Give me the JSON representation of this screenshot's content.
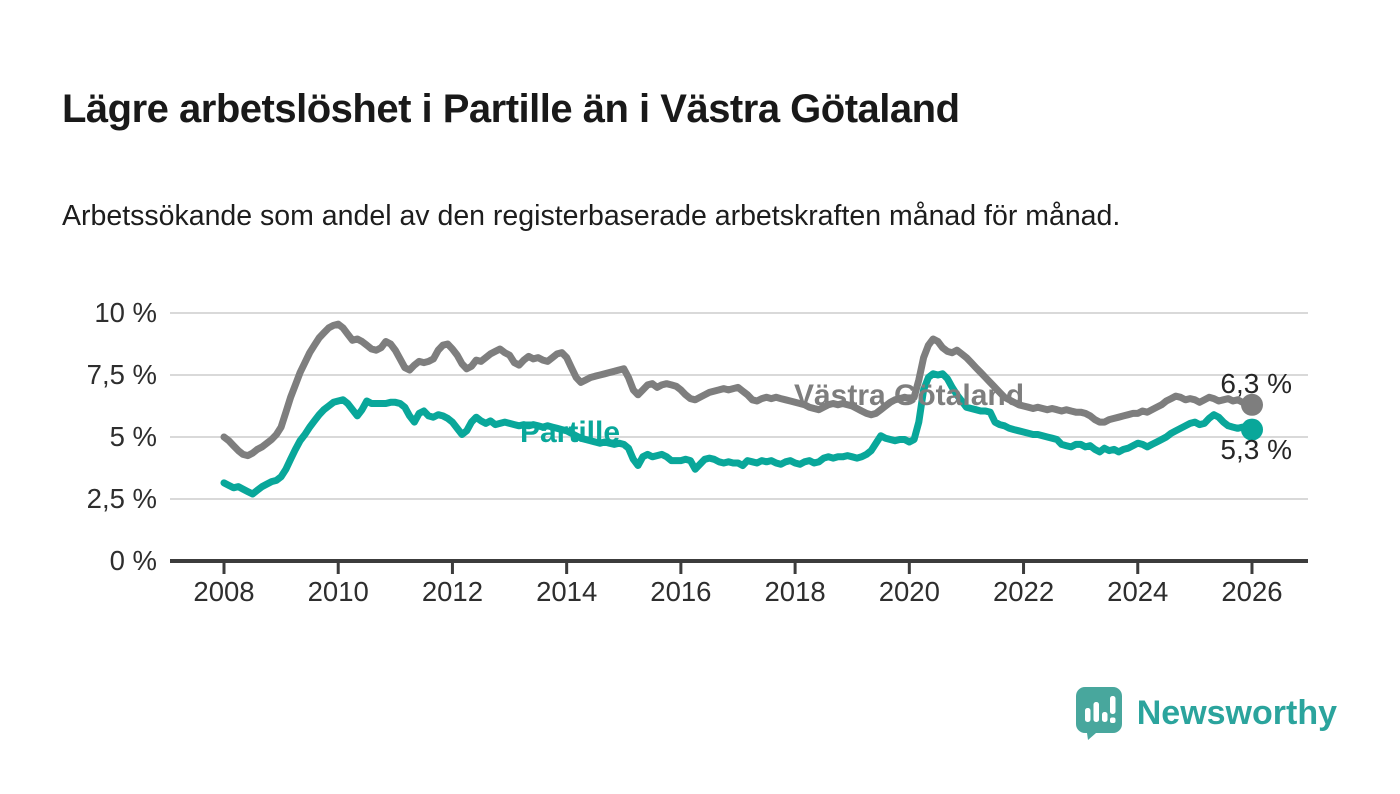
{
  "header": {
    "title": "Lägre arbetslöshet i Partille än i Västra Götaland",
    "subtitle": "Arbetssökande som andel av den registerbaserade arbetskraften månad för månad."
  },
  "footer": {
    "brand": "Newsworthy",
    "brand_color": "#2ba49d",
    "logo_icon": "bar-chart-speech-bubble"
  },
  "chart_data": {
    "type": "line",
    "title": "Lägre arbetslöshet i Partille än i Västra Götaland",
    "subtitle": "Arbetssökande som andel av den registerbaserade arbetskraften månad för månad.",
    "xlabel": "",
    "ylabel": "",
    "x_unit": "year-month",
    "x_start": 2008.0,
    "x_step_years": 0.0833,
    "xlim": [
      2007.05,
      2026.98
    ],
    "ylim": [
      0,
      10.5
    ],
    "grid": true,
    "grid_color": "#d9d9d9",
    "axis_color": "#3c3c3c",
    "x_ticks": [
      2008,
      2010,
      2012,
      2014,
      2016,
      2018,
      2020,
      2022,
      2024,
      2026
    ],
    "y_ticks": [
      {
        "value": 10,
        "label": "10 %"
      },
      {
        "value": 7.5,
        "label": "7,5 %"
      },
      {
        "value": 5,
        "label": "5 %"
      },
      {
        "value": 2.5,
        "label": "2,5 %"
      },
      {
        "value": 0,
        "label": "0 %"
      }
    ],
    "legend_position": "inline-labels",
    "series": [
      {
        "name": "Västra Götaland",
        "color": "#7e7e7e",
        "end_label": "6,3 %",
        "end_value": 6.3,
        "label_anchor": {
          "x": 909,
          "y": 396
        },
        "values": [
          5.0,
          4.85,
          4.65,
          4.45,
          4.3,
          4.25,
          4.35,
          4.5,
          4.6,
          4.75,
          4.9,
          5.1,
          5.4,
          6.0,
          6.6,
          7.1,
          7.6,
          8.0,
          8.4,
          8.7,
          9.0,
          9.2,
          9.4,
          9.5,
          9.55,
          9.4,
          9.15,
          8.9,
          8.95,
          8.85,
          8.7,
          8.55,
          8.5,
          8.6,
          8.85,
          8.75,
          8.5,
          8.15,
          7.8,
          7.7,
          7.9,
          8.05,
          8.0,
          8.05,
          8.15,
          8.5,
          8.7,
          8.75,
          8.55,
          8.3,
          7.95,
          7.75,
          7.85,
          8.1,
          8.05,
          8.2,
          8.35,
          8.45,
          8.55,
          8.4,
          8.3,
          8.0,
          7.9,
          8.1,
          8.25,
          8.15,
          8.2,
          8.1,
          8.05,
          8.2,
          8.35,
          8.4,
          8.2,
          7.8,
          7.4,
          7.2,
          7.3,
          7.4,
          7.45,
          7.5,
          7.55,
          7.6,
          7.65,
          7.7,
          7.75,
          7.4,
          6.9,
          6.7,
          6.9,
          7.1,
          7.15,
          7.0,
          7.1,
          7.15,
          7.1,
          7.05,
          6.9,
          6.7,
          6.55,
          6.5,
          6.6,
          6.7,
          6.8,
          6.85,
          6.9,
          6.95,
          6.9,
          6.95,
          7.0,
          6.85,
          6.7,
          6.5,
          6.45,
          6.55,
          6.6,
          6.55,
          6.6,
          6.55,
          6.5,
          6.45,
          6.4,
          6.35,
          6.3,
          6.2,
          6.15,
          6.1,
          6.2,
          6.3,
          6.35,
          6.3,
          6.35,
          6.3,
          6.25,
          6.15,
          6.05,
          5.95,
          5.9,
          5.95,
          6.1,
          6.25,
          6.4,
          6.5,
          6.55,
          6.6,
          6.55,
          6.6,
          7.3,
          8.2,
          8.7,
          8.95,
          8.85,
          8.6,
          8.45,
          8.4,
          8.5,
          8.35,
          8.2,
          8.0,
          7.8,
          7.6,
          7.4,
          7.2,
          7.0,
          6.8,
          6.6,
          6.5,
          6.4,
          6.3,
          6.25,
          6.2,
          6.15,
          6.2,
          6.15,
          6.1,
          6.15,
          6.1,
          6.05,
          6.1,
          6.05,
          6.0,
          6.0,
          5.95,
          5.85,
          5.7,
          5.6,
          5.6,
          5.7,
          5.75,
          5.8,
          5.85,
          5.9,
          5.95,
          5.95,
          6.05,
          6.0,
          6.1,
          6.2,
          6.3,
          6.45,
          6.55,
          6.65,
          6.6,
          6.5,
          6.55,
          6.5,
          6.4,
          6.5,
          6.6,
          6.55,
          6.45,
          6.5,
          6.55,
          6.45,
          6.5,
          6.4,
          6.35,
          6.3
        ]
      },
      {
        "name": "Partille",
        "color": "#09a79a",
        "end_label": "5,3 %",
        "end_value": 5.3,
        "label_anchor": {
          "x": 570,
          "y": 433
        },
        "values": [
          3.15,
          3.05,
          2.95,
          3.0,
          2.9,
          2.8,
          2.7,
          2.85,
          3.0,
          3.1,
          3.2,
          3.25,
          3.4,
          3.7,
          4.1,
          4.5,
          4.85,
          5.1,
          5.4,
          5.65,
          5.9,
          6.1,
          6.25,
          6.4,
          6.45,
          6.5,
          6.35,
          6.1,
          5.85,
          6.1,
          6.45,
          6.35,
          6.35,
          6.35,
          6.35,
          6.4,
          6.4,
          6.35,
          6.2,
          5.85,
          5.6,
          5.95,
          6.05,
          5.85,
          5.8,
          5.9,
          5.85,
          5.75,
          5.6,
          5.35,
          5.1,
          5.25,
          5.6,
          5.8,
          5.65,
          5.55,
          5.65,
          5.5,
          5.55,
          5.6,
          5.55,
          5.5,
          5.45,
          5.5,
          5.45,
          5.5,
          5.45,
          5.4,
          5.45,
          5.4,
          5.35,
          5.3,
          5.25,
          5.15,
          5.05,
          4.95,
          4.9,
          4.85,
          4.8,
          4.75,
          4.8,
          4.75,
          4.7,
          4.75,
          4.7,
          4.55,
          4.1,
          3.85,
          4.2,
          4.3,
          4.2,
          4.25,
          4.3,
          4.2,
          4.05,
          4.05,
          4.05,
          4.1,
          4.05,
          3.7,
          3.9,
          4.1,
          4.15,
          4.1,
          4.0,
          3.95,
          4.0,
          3.95,
          3.95,
          3.85,
          4.05,
          4.0,
          3.95,
          4.05,
          4.0,
          4.05,
          3.95,
          3.9,
          4.0,
          4.05,
          3.95,
          3.9,
          4.0,
          4.05,
          3.95,
          4.0,
          4.15,
          4.2,
          4.15,
          4.2,
          4.2,
          4.25,
          4.2,
          4.15,
          4.2,
          4.3,
          4.45,
          4.75,
          5.05,
          4.95,
          4.9,
          4.85,
          4.9,
          4.9,
          4.8,
          4.9,
          5.6,
          6.9,
          7.4,
          7.55,
          7.5,
          7.55,
          7.35,
          7.0,
          6.7,
          6.45,
          6.2,
          6.15,
          6.1,
          6.05,
          6.05,
          6.0,
          5.6,
          5.5,
          5.45,
          5.35,
          5.3,
          5.25,
          5.2,
          5.15,
          5.1,
          5.1,
          5.05,
          5.0,
          4.95,
          4.9,
          4.7,
          4.65,
          4.6,
          4.7,
          4.7,
          4.6,
          4.65,
          4.5,
          4.4,
          4.55,
          4.45,
          4.5,
          4.4,
          4.5,
          4.55,
          4.65,
          4.75,
          4.7,
          4.6,
          4.7,
          4.8,
          4.9,
          5.0,
          5.15,
          5.25,
          5.35,
          5.45,
          5.55,
          5.6,
          5.5,
          5.55,
          5.75,
          5.9,
          5.8,
          5.6,
          5.45,
          5.4,
          5.35,
          5.4,
          5.35,
          5.3
        ]
      }
    ]
  }
}
